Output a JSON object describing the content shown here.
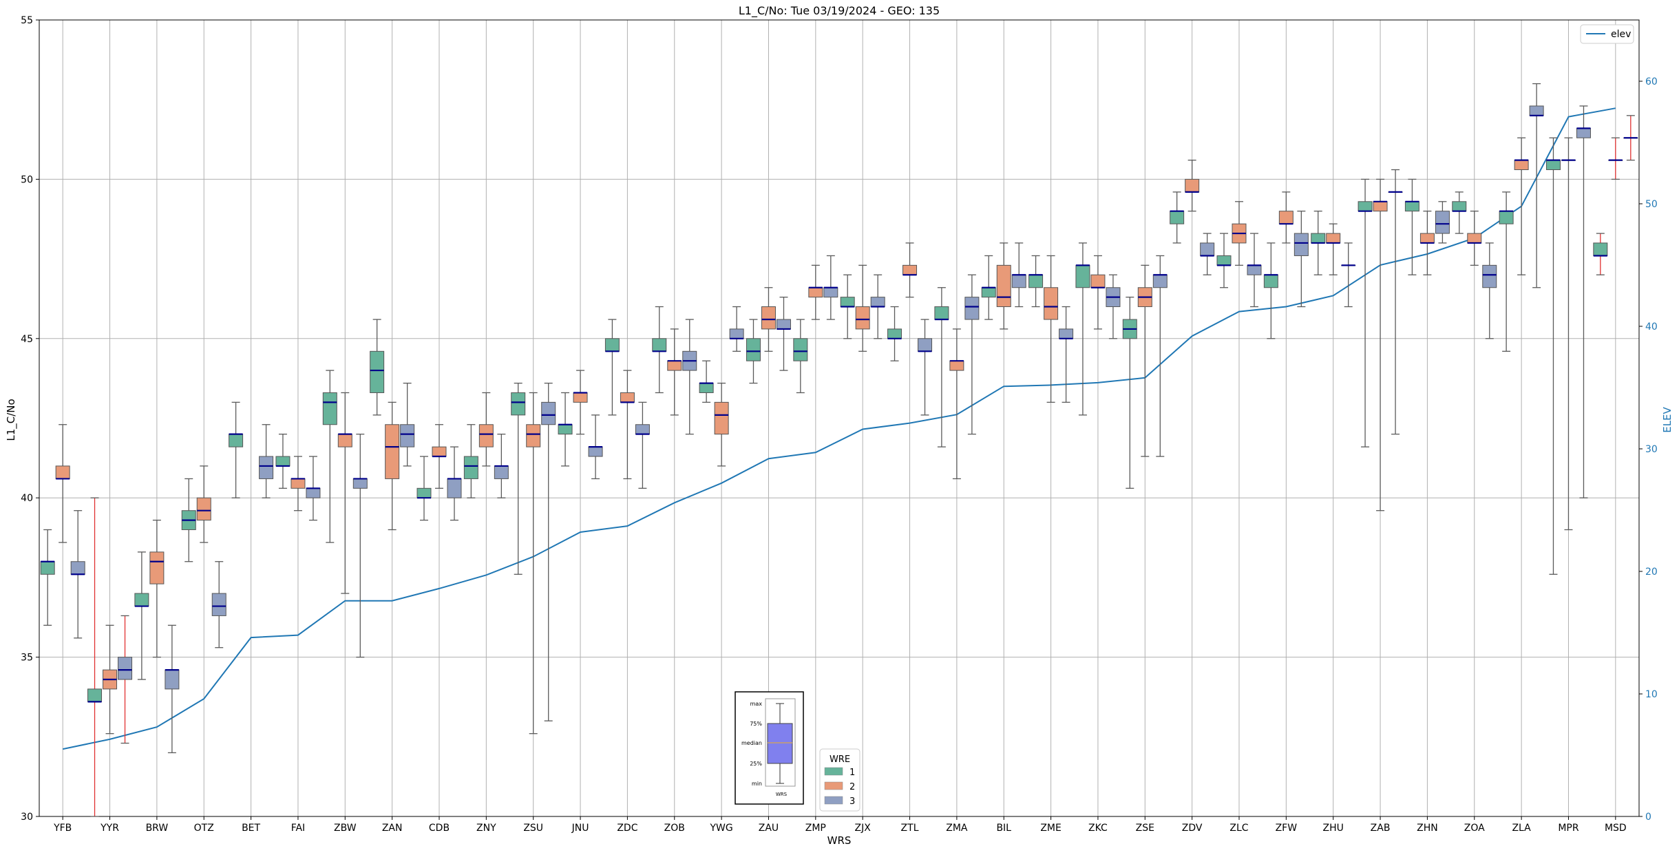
{
  "colors": {
    "wre1": "#66b39a",
    "wre2": "#e89a78",
    "wre3": "#8f9fc2",
    "median": "#00008b",
    "whisker": "#5a5a5a",
    "outlier_whisker": "#e03030",
    "elev_line": "#1f77b4",
    "grid": "#b0b0b0",
    "right_axis": "#1f77b4",
    "key_box_fill": "#8080ee"
  },
  "chart_data": {
    "type": "box",
    "title": "L1_C/No: Tue 03/19/2024 - GEO: 135",
    "xlabel": "WRS",
    "ylabel": "L1_C/No",
    "ylabel_right": "ELEV",
    "ylim": [
      30,
      55
    ],
    "ylim_right": [
      0,
      65
    ],
    "yticks": [
      30,
      35,
      40,
      45,
      50,
      55
    ],
    "yticks_right": [
      0,
      10,
      20,
      30,
      40,
      50,
      60
    ],
    "grid": true,
    "categories": [
      "YFB",
      "YYR",
      "BRW",
      "OTZ",
      "BET",
      "FAI",
      "ZBW",
      "ZAN",
      "CDB",
      "ZNY",
      "ZSU",
      "JNU",
      "ZDC",
      "ZOB",
      "YWG",
      "ZAU",
      "ZMP",
      "ZJX",
      "ZTL",
      "ZMA",
      "BIL",
      "ZME",
      "ZKC",
      "ZSE",
      "ZDV",
      "ZLC",
      "ZFW",
      "ZHU",
      "ZAB",
      "ZHN",
      "ZOA",
      "ZLA",
      "MPR",
      "MSD"
    ],
    "legend_line": {
      "label": "elev",
      "placement": "top-right"
    },
    "legend_box": {
      "title": "WRE",
      "entries": [
        "1",
        "2",
        "3"
      ],
      "placement": "bottom-center"
    },
    "key": {
      "labels": [
        "max",
        "75%",
        "median",
        "25%",
        "min"
      ],
      "caption": "WRS"
    },
    "elevation": [
      5.5,
      6.3,
      7.3,
      9.6,
      14.6,
      14.8,
      17.6,
      17.6,
      18.6,
      19.7,
      21.2,
      23.2,
      23.7,
      25.6,
      27.2,
      29.2,
      29.7,
      31.6,
      32.1,
      32.8,
      35.1,
      35.2,
      35.4,
      35.8,
      39.2,
      41.2,
      41.6,
      42.5,
      45.0,
      45.9,
      47.2,
      49.8,
      57.1,
      57.8
    ],
    "boxes": [
      {
        "x": "YFB",
        "wre": 1,
        "min": 36.0,
        "q1": 37.6,
        "med": 38.0,
        "q3": 38.0,
        "max": 39.0
      },
      {
        "x": "YFB",
        "wre": 2,
        "min": 38.6,
        "q1": 40.6,
        "med": 40.6,
        "q3": 41.0,
        "max": 42.3
      },
      {
        "x": "YFB",
        "wre": 3,
        "min": 35.6,
        "q1": 37.6,
        "med": 37.6,
        "q3": 38.0,
        "max": 39.6
      },
      {
        "x": "YYR",
        "wre": 1,
        "min": 30.0,
        "q1": 33.6,
        "med": 33.6,
        "q3": 34.0,
        "max": 40.0,
        "flag": true
      },
      {
        "x": "YYR",
        "wre": 2,
        "min": 32.6,
        "q1": 34.0,
        "med": 34.3,
        "q3": 34.6,
        "max": 36.0
      },
      {
        "x": "YYR",
        "wre": 3,
        "min": 32.3,
        "q1": 34.3,
        "med": 34.6,
        "q3": 35.0,
        "max": 36.3,
        "flag": true
      },
      {
        "x": "BRW",
        "wre": 1,
        "min": 34.3,
        "q1": 36.6,
        "med": 36.6,
        "q3": 37.0,
        "max": 38.3
      },
      {
        "x": "BRW",
        "wre": 2,
        "min": 35.0,
        "q1": 37.3,
        "med": 38.0,
        "q3": 38.3,
        "max": 39.3
      },
      {
        "x": "BRW",
        "wre": 3,
        "min": 32.0,
        "q1": 34.0,
        "med": 34.6,
        "q3": 34.6,
        "max": 36.0
      },
      {
        "x": "OTZ",
        "wre": 1,
        "min": 38.0,
        "q1": 39.0,
        "med": 39.3,
        "q3": 39.6,
        "max": 40.6
      },
      {
        "x": "OTZ",
        "wre": 2,
        "min": 38.6,
        "q1": 39.3,
        "med": 39.6,
        "q3": 40.0,
        "max": 41.0
      },
      {
        "x": "OTZ",
        "wre": 3,
        "min": 35.3,
        "q1": 36.3,
        "med": 36.6,
        "q3": 37.0,
        "max": 38.0
      },
      {
        "x": "BET",
        "wre": 1,
        "min": 40.0,
        "q1": 41.6,
        "med": 42.0,
        "q3": 42.0,
        "max": 43.0
      },
      {
        "x": "BET",
        "wre": 3,
        "min": 40.0,
        "q1": 40.6,
        "med": 41.0,
        "q3": 41.3,
        "max": 42.3
      },
      {
        "x": "FAI",
        "wre": 1,
        "min": 40.3,
        "q1": 41.0,
        "med": 41.0,
        "q3": 41.3,
        "max": 42.0
      },
      {
        "x": "FAI",
        "wre": 2,
        "min": 39.6,
        "q1": 40.3,
        "med": 40.6,
        "q3": 40.6,
        "max": 41.3
      },
      {
        "x": "FAI",
        "wre": 3,
        "min": 39.3,
        "q1": 40.0,
        "med": 40.3,
        "q3": 40.3,
        "max": 41.3
      },
      {
        "x": "ZBW",
        "wre": 1,
        "min": 38.6,
        "q1": 42.3,
        "med": 43.0,
        "q3": 43.3,
        "max": 44.0
      },
      {
        "x": "ZBW",
        "wre": 2,
        "min": 37.0,
        "q1": 41.6,
        "med": 42.0,
        "q3": 42.0,
        "max": 43.3
      },
      {
        "x": "ZBW",
        "wre": 3,
        "min": 35.0,
        "q1": 40.3,
        "med": 40.6,
        "q3": 40.6,
        "max": 42.0
      },
      {
        "x": "ZAN",
        "wre": 1,
        "min": 42.6,
        "q1": 43.3,
        "med": 44.0,
        "q3": 44.6,
        "max": 45.6
      },
      {
        "x": "ZAN",
        "wre": 2,
        "min": 39.0,
        "q1": 40.6,
        "med": 41.6,
        "q3": 42.3,
        "max": 43.0
      },
      {
        "x": "ZAN",
        "wre": 3,
        "min": 41.0,
        "q1": 41.6,
        "med": 42.0,
        "q3": 42.3,
        "max": 43.6
      },
      {
        "x": "CDB",
        "wre": 1,
        "min": 39.3,
        "q1": 40.0,
        "med": 40.0,
        "q3": 40.3,
        "max": 41.3
      },
      {
        "x": "CDB",
        "wre": 2,
        "min": 40.3,
        "q1": 41.3,
        "med": 41.3,
        "q3": 41.6,
        "max": 42.3
      },
      {
        "x": "CDB",
        "wre": 3,
        "min": 39.3,
        "q1": 40.0,
        "med": 40.6,
        "q3": 40.6,
        "max": 41.6
      },
      {
        "x": "ZNY",
        "wre": 1,
        "min": 40.0,
        "q1": 40.6,
        "med": 41.0,
        "q3": 41.3,
        "max": 42.3
      },
      {
        "x": "ZNY",
        "wre": 2,
        "min": 41.0,
        "q1": 41.6,
        "med": 42.0,
        "q3": 42.3,
        "max": 43.3
      },
      {
        "x": "ZNY",
        "wre": 3,
        "min": 40.0,
        "q1": 40.6,
        "med": 41.0,
        "q3": 41.0,
        "max": 42.0
      },
      {
        "x": "ZSU",
        "wre": 1,
        "min": 37.6,
        "q1": 42.6,
        "med": 43.0,
        "q3": 43.3,
        "max": 43.6
      },
      {
        "x": "ZSU",
        "wre": 2,
        "min": 32.6,
        "q1": 41.6,
        "med": 42.0,
        "q3": 42.3,
        "max": 43.3
      },
      {
        "x": "ZSU",
        "wre": 3,
        "min": 33.0,
        "q1": 42.3,
        "med": 42.6,
        "q3": 43.0,
        "max": 43.6
      },
      {
        "x": "JNU",
        "wre": 1,
        "min": 41.0,
        "q1": 42.0,
        "med": 42.3,
        "q3": 42.3,
        "max": 43.3
      },
      {
        "x": "JNU",
        "wre": 2,
        "min": 42.0,
        "q1": 43.0,
        "med": 43.3,
        "q3": 43.3,
        "max": 44.0
      },
      {
        "x": "JNU",
        "wre": 3,
        "min": 40.6,
        "q1": 41.3,
        "med": 41.6,
        "q3": 41.6,
        "max": 42.6
      },
      {
        "x": "ZDC",
        "wre": 1,
        "min": 42.6,
        "q1": 44.6,
        "med": 44.6,
        "q3": 45.0,
        "max": 45.6
      },
      {
        "x": "ZDC",
        "wre": 2,
        "min": 40.6,
        "q1": 43.0,
        "med": 43.0,
        "q3": 43.3,
        "max": 44.0
      },
      {
        "x": "ZDC",
        "wre": 3,
        "min": 40.3,
        "q1": 42.0,
        "med": 42.0,
        "q3": 42.3,
        "max": 43.0
      },
      {
        "x": "ZOB",
        "wre": 1,
        "min": 43.3,
        "q1": 44.6,
        "med": 44.6,
        "q3": 45.0,
        "max": 46.0
      },
      {
        "x": "ZOB",
        "wre": 2,
        "min": 42.6,
        "q1": 44.0,
        "med": 44.3,
        "q3": 44.3,
        "max": 45.3
      },
      {
        "x": "ZOB",
        "wre": 3,
        "min": 42.0,
        "q1": 44.0,
        "med": 44.3,
        "q3": 44.6,
        "max": 45.6
      },
      {
        "x": "YWG",
        "wre": 1,
        "min": 43.0,
        "q1": 43.3,
        "med": 43.6,
        "q3": 43.6,
        "max": 44.3
      },
      {
        "x": "YWG",
        "wre": 2,
        "min": 41.0,
        "q1": 42.0,
        "med": 42.6,
        "q3": 43.0,
        "max": 43.6
      },
      {
        "x": "YWG",
        "wre": 3,
        "min": 44.6,
        "q1": 45.0,
        "med": 45.0,
        "q3": 45.3,
        "max": 46.0
      },
      {
        "x": "ZAU",
        "wre": 1,
        "min": 43.6,
        "q1": 44.3,
        "med": 44.6,
        "q3": 45.0,
        "max": 45.6
      },
      {
        "x": "ZAU",
        "wre": 2,
        "min": 44.6,
        "q1": 45.3,
        "med": 45.6,
        "q3": 46.0,
        "max": 46.6
      },
      {
        "x": "ZAU",
        "wre": 3,
        "min": 44.0,
        "q1": 45.3,
        "med": 45.3,
        "q3": 45.6,
        "max": 46.3
      },
      {
        "x": "ZMP",
        "wre": 1,
        "min": 43.3,
        "q1": 44.3,
        "med": 44.6,
        "q3": 45.0,
        "max": 45.6
      },
      {
        "x": "ZMP",
        "wre": 2,
        "min": 45.6,
        "q1": 46.3,
        "med": 46.6,
        "q3": 46.6,
        "max": 47.3
      },
      {
        "x": "ZMP",
        "wre": 3,
        "min": 45.6,
        "q1": 46.3,
        "med": 46.6,
        "q3": 46.6,
        "max": 47.6
      },
      {
        "x": "ZJX",
        "wre": 1,
        "min": 45.0,
        "q1": 46.0,
        "med": 46.0,
        "q3": 46.3,
        "max": 47.0
      },
      {
        "x": "ZJX",
        "wre": 2,
        "min": 44.6,
        "q1": 45.3,
        "med": 45.6,
        "q3": 46.0,
        "max": 47.3
      },
      {
        "x": "ZJX",
        "wre": 3,
        "min": 45.0,
        "q1": 46.0,
        "med": 46.0,
        "q3": 46.3,
        "max": 47.0
      },
      {
        "x": "ZTL",
        "wre": 1,
        "min": 44.3,
        "q1": 45.0,
        "med": 45.0,
        "q3": 45.3,
        "max": 46.0
      },
      {
        "x": "ZTL",
        "wre": 2,
        "min": 46.3,
        "q1": 47.0,
        "med": 47.0,
        "q3": 47.3,
        "max": 48.0
      },
      {
        "x": "ZTL",
        "wre": 3,
        "min": 42.6,
        "q1": 44.6,
        "med": 44.6,
        "q3": 45.0,
        "max": 45.6
      },
      {
        "x": "ZMA",
        "wre": 1,
        "min": 41.6,
        "q1": 45.6,
        "med": 45.6,
        "q3": 46.0,
        "max": 46.6
      },
      {
        "x": "ZMA",
        "wre": 2,
        "min": 40.6,
        "q1": 44.0,
        "med": 44.3,
        "q3": 44.3,
        "max": 45.3
      },
      {
        "x": "ZMA",
        "wre": 3,
        "min": 42.0,
        "q1": 45.6,
        "med": 46.0,
        "q3": 46.3,
        "max": 47.0
      },
      {
        "x": "BIL",
        "wre": 1,
        "min": 45.6,
        "q1": 46.3,
        "med": 46.6,
        "q3": 46.6,
        "max": 47.6
      },
      {
        "x": "BIL",
        "wre": 2,
        "min": 45.3,
        "q1": 46.0,
        "med": 46.3,
        "q3": 47.3,
        "max": 48.0
      },
      {
        "x": "BIL",
        "wre": 3,
        "min": 46.0,
        "q1": 46.6,
        "med": 47.0,
        "q3": 47.0,
        "max": 48.0
      },
      {
        "x": "ZME",
        "wre": 1,
        "min": 46.0,
        "q1": 46.6,
        "med": 47.0,
        "q3": 47.0,
        "max": 47.6
      },
      {
        "x": "ZME",
        "wre": 2,
        "min": 43.0,
        "q1": 45.6,
        "med": 46.0,
        "q3": 46.6,
        "max": 47.6
      },
      {
        "x": "ZME",
        "wre": 3,
        "min": 43.0,
        "q1": 45.0,
        "med": 45.0,
        "q3": 45.3,
        "max": 46.0
      },
      {
        "x": "ZKC",
        "wre": 1,
        "min": 42.6,
        "q1": 46.6,
        "med": 47.3,
        "q3": 47.3,
        "max": 48.0
      },
      {
        "x": "ZKC",
        "wre": 2,
        "min": 45.3,
        "q1": 46.6,
        "med": 46.6,
        "q3": 47.0,
        "max": 47.6
      },
      {
        "x": "ZKC",
        "wre": 3,
        "min": 45.0,
        "q1": 46.0,
        "med": 46.3,
        "q3": 46.6,
        "max": 47.0
      },
      {
        "x": "ZSE",
        "wre": 1,
        "min": 40.3,
        "q1": 45.0,
        "med": 45.3,
        "q3": 45.6,
        "max": 46.3
      },
      {
        "x": "ZSE",
        "wre": 2,
        "min": 41.3,
        "q1": 46.0,
        "med": 46.3,
        "q3": 46.6,
        "max": 47.3
      },
      {
        "x": "ZSE",
        "wre": 3,
        "min": 41.3,
        "q1": 46.6,
        "med": 47.0,
        "q3": 47.0,
        "max": 47.6
      },
      {
        "x": "ZDV",
        "wre": 1,
        "min": 48.0,
        "q1": 48.6,
        "med": 49.0,
        "q3": 49.0,
        "max": 49.6
      },
      {
        "x": "ZDV",
        "wre": 2,
        "min": 49.0,
        "q1": 49.6,
        "med": 49.6,
        "q3": 50.0,
        "max": 50.6
      },
      {
        "x": "ZDV",
        "wre": 3,
        "min": 47.0,
        "q1": 47.6,
        "med": 47.6,
        "q3": 48.0,
        "max": 48.3
      },
      {
        "x": "ZLC",
        "wre": 1,
        "min": 46.6,
        "q1": 47.3,
        "med": 47.3,
        "q3": 47.6,
        "max": 48.3
      },
      {
        "x": "ZLC",
        "wre": 2,
        "min": 47.3,
        "q1": 48.0,
        "med": 48.3,
        "q3": 48.6,
        "max": 49.3
      },
      {
        "x": "ZLC",
        "wre": 3,
        "min": 46.0,
        "q1": 47.0,
        "med": 47.3,
        "q3": 47.3,
        "max": 48.3
      },
      {
        "x": "ZFW",
        "wre": 1,
        "min": 45.0,
        "q1": 46.6,
        "med": 47.0,
        "q3": 47.0,
        "max": 48.0
      },
      {
        "x": "ZFW",
        "wre": 2,
        "min": 48.0,
        "q1": 48.6,
        "med": 48.6,
        "q3": 49.0,
        "max": 49.6
      },
      {
        "x": "ZFW",
        "wre": 3,
        "min": 46.0,
        "q1": 47.6,
        "med": 48.0,
        "q3": 48.3,
        "max": 49.0
      },
      {
        "x": "ZHU",
        "wre": 1,
        "min": 47.0,
        "q1": 48.0,
        "med": 48.0,
        "q3": 48.3,
        "max": 49.0
      },
      {
        "x": "ZHU",
        "wre": 2,
        "min": 47.0,
        "q1": 48.0,
        "med": 48.0,
        "q3": 48.3,
        "max": 48.6
      },
      {
        "x": "ZHU",
        "wre": 3,
        "min": 46.0,
        "q1": 47.3,
        "med": 47.3,
        "q3": 47.3,
        "max": 48.0
      },
      {
        "x": "ZAB",
        "wre": 1,
        "min": 41.6,
        "q1": 49.0,
        "med": 49.0,
        "q3": 49.3,
        "max": 50.0
      },
      {
        "x": "ZAB",
        "wre": 2,
        "min": 39.6,
        "q1": 49.0,
        "med": 49.3,
        "q3": 49.3,
        "max": 50.0
      },
      {
        "x": "ZAB",
        "wre": 3,
        "min": 42.0,
        "q1": 49.6,
        "med": 49.6,
        "q3": 49.6,
        "max": 50.3
      },
      {
        "x": "ZHN",
        "wre": 1,
        "min": 47.0,
        "q1": 49.0,
        "med": 49.3,
        "q3": 49.3,
        "max": 50.0
      },
      {
        "x": "ZHN",
        "wre": 2,
        "min": 47.0,
        "q1": 48.0,
        "med": 48.0,
        "q3": 48.3,
        "max": 49.0
      },
      {
        "x": "ZHN",
        "wre": 3,
        "min": 48.0,
        "q1": 48.3,
        "med": 48.6,
        "q3": 49.0,
        "max": 49.3
      },
      {
        "x": "ZOA",
        "wre": 1,
        "min": 48.3,
        "q1": 49.0,
        "med": 49.0,
        "q3": 49.3,
        "max": 49.6
      },
      {
        "x": "ZOA",
        "wre": 2,
        "min": 47.3,
        "q1": 48.0,
        "med": 48.0,
        "q3": 48.3,
        "max": 49.0
      },
      {
        "x": "ZOA",
        "wre": 3,
        "min": 45.0,
        "q1": 46.6,
        "med": 47.0,
        "q3": 47.3,
        "max": 48.0
      },
      {
        "x": "ZLA",
        "wre": 1,
        "min": 44.6,
        "q1": 48.6,
        "med": 49.0,
        "q3": 49.0,
        "max": 49.6
      },
      {
        "x": "ZLA",
        "wre": 2,
        "min": 47.0,
        "q1": 50.3,
        "med": 50.6,
        "q3": 50.6,
        "max": 51.3
      },
      {
        "x": "ZLA",
        "wre": 3,
        "min": 46.6,
        "q1": 52.0,
        "med": 52.0,
        "q3": 52.3,
        "max": 53.0
      },
      {
        "x": "MPR",
        "wre": 1,
        "min": 37.6,
        "q1": 50.3,
        "med": 50.6,
        "q3": 50.6,
        "max": 51.3
      },
      {
        "x": "MPR",
        "wre": 2,
        "min": 39.0,
        "q1": 50.6,
        "med": 50.6,
        "q3": 50.6,
        "max": 51.3
      },
      {
        "x": "MPR",
        "wre": 3,
        "min": 40.0,
        "q1": 51.3,
        "med": 51.6,
        "q3": 51.6,
        "max": 52.3
      },
      {
        "x": "MSD",
        "wre": 1,
        "min": 47.0,
        "q1": 47.6,
        "med": 47.6,
        "q3": 48.0,
        "max": 48.3,
        "flag": true
      },
      {
        "x": "MSD",
        "wre": 2,
        "min": 50.0,
        "q1": 50.6,
        "med": 50.6,
        "q3": 50.6,
        "max": 51.3,
        "flag": true
      },
      {
        "x": "MSD",
        "wre": 3,
        "min": 50.6,
        "q1": 51.3,
        "med": 51.3,
        "q3": 51.3,
        "max": 52.0,
        "flag": true
      }
    ]
  }
}
